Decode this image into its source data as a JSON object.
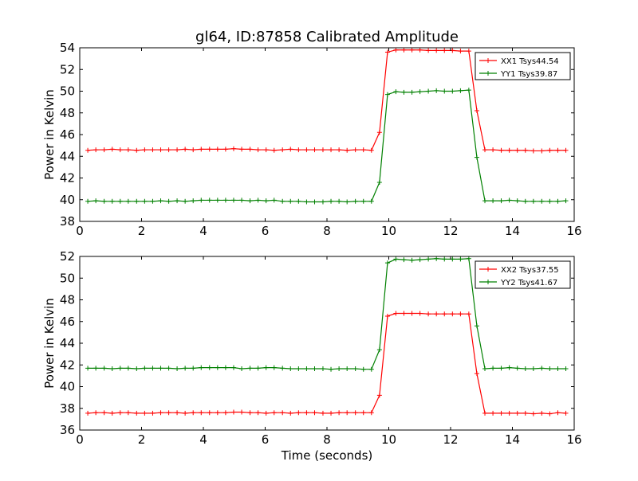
{
  "chart_data": [
    {
      "type": "line",
      "title": "gl64, ID:87858 Calibrated Amplitude",
      "xlabel": "",
      "ylabel": "Power in Kelvin",
      "xlim": [
        0,
        16
      ],
      "ylim": [
        38,
        54
      ],
      "xticks": [
        "0",
        "2",
        "4",
        "6",
        "8",
        "10",
        "12",
        "14",
        "16"
      ],
      "yticks": [
        "38",
        "40",
        "42",
        "44",
        "46",
        "48",
        "50",
        "52",
        "54"
      ],
      "legend_position": "top-right",
      "x": [
        0.26,
        0.52,
        0.79,
        1.05,
        1.31,
        1.57,
        1.84,
        2.1,
        2.36,
        2.62,
        2.88,
        3.15,
        3.41,
        3.67,
        3.93,
        4.2,
        4.46,
        4.72,
        4.98,
        5.24,
        5.51,
        5.77,
        6.03,
        6.29,
        6.56,
        6.82,
        7.08,
        7.34,
        7.6,
        7.87,
        8.13,
        8.39,
        8.65,
        8.92,
        9.18,
        9.44,
        9.7,
        9.96,
        10.23,
        10.49,
        10.75,
        11.01,
        11.28,
        11.54,
        11.8,
        12.06,
        12.32,
        12.59,
        12.85,
        13.11,
        13.37,
        13.64,
        13.9,
        14.16,
        14.42,
        14.68,
        14.95,
        15.21,
        15.47,
        15.73
      ],
      "series": [
        {
          "name": "XX1 Tsys44.54",
          "color": "#ff0000",
          "values": [
            44.55,
            44.6,
            44.6,
            44.65,
            44.6,
            44.6,
            44.55,
            44.6,
            44.6,
            44.6,
            44.6,
            44.6,
            44.65,
            44.6,
            44.65,
            44.65,
            44.65,
            44.65,
            44.7,
            44.65,
            44.65,
            44.6,
            44.6,
            44.55,
            44.6,
            44.65,
            44.6,
            44.6,
            44.6,
            44.6,
            44.6,
            44.6,
            44.55,
            44.6,
            44.6,
            44.55,
            46.2,
            53.6,
            53.8,
            53.8,
            53.8,
            53.8,
            53.75,
            53.75,
            53.75,
            53.75,
            53.7,
            53.7,
            48.2,
            44.6,
            44.6,
            44.55,
            44.55,
            44.55,
            44.55,
            44.5,
            44.5,
            44.55,
            44.55,
            44.55
          ]
        },
        {
          "name": "YY1 Tsys39.87",
          "color": "#008000",
          "values": [
            39.85,
            39.9,
            39.85,
            39.85,
            39.85,
            39.85,
            39.85,
            39.85,
            39.85,
            39.9,
            39.85,
            39.9,
            39.85,
            39.9,
            39.95,
            39.95,
            39.95,
            39.95,
            39.95,
            39.95,
            39.9,
            39.95,
            39.9,
            39.95,
            39.85,
            39.85,
            39.85,
            39.8,
            39.8,
            39.8,
            39.85,
            39.85,
            39.8,
            39.85,
            39.85,
            39.85,
            41.6,
            49.7,
            49.95,
            49.9,
            49.9,
            49.95,
            50.0,
            50.05,
            50.0,
            50.0,
            50.05,
            50.1,
            43.9,
            39.9,
            39.9,
            39.9,
            39.95,
            39.9,
            39.85,
            39.85,
            39.85,
            39.85,
            39.85,
            39.9
          ]
        }
      ]
    },
    {
      "type": "line",
      "title": "",
      "xlabel": "Time (seconds)",
      "ylabel": "Power in Kelvin",
      "xlim": [
        0,
        16
      ],
      "ylim": [
        36,
        52
      ],
      "xticks": [
        "0",
        "2",
        "4",
        "6",
        "8",
        "10",
        "12",
        "14",
        "16"
      ],
      "yticks": [
        "36",
        "38",
        "40",
        "42",
        "44",
        "46",
        "48",
        "50",
        "52"
      ],
      "legend_position": "top-right",
      "x": [
        0.26,
        0.52,
        0.79,
        1.05,
        1.31,
        1.57,
        1.84,
        2.1,
        2.36,
        2.62,
        2.88,
        3.15,
        3.41,
        3.67,
        3.93,
        4.2,
        4.46,
        4.72,
        4.98,
        5.24,
        5.51,
        5.77,
        6.03,
        6.29,
        6.56,
        6.82,
        7.08,
        7.34,
        7.6,
        7.87,
        8.13,
        8.39,
        8.65,
        8.92,
        9.18,
        9.44,
        9.7,
        9.96,
        10.23,
        10.49,
        10.75,
        11.01,
        11.28,
        11.54,
        11.8,
        12.06,
        12.32,
        12.59,
        12.85,
        13.11,
        13.37,
        13.64,
        13.9,
        14.16,
        14.42,
        14.68,
        14.95,
        15.21,
        15.47,
        15.73
      ],
      "series": [
        {
          "name": "XX2 Tsys37.55",
          "color": "#ff0000",
          "values": [
            37.55,
            37.6,
            37.6,
            37.55,
            37.6,
            37.6,
            37.55,
            37.55,
            37.55,
            37.6,
            37.6,
            37.6,
            37.55,
            37.6,
            37.6,
            37.6,
            37.6,
            37.6,
            37.65,
            37.65,
            37.6,
            37.6,
            37.55,
            37.6,
            37.6,
            37.55,
            37.6,
            37.6,
            37.6,
            37.55,
            37.55,
            37.6,
            37.6,
            37.6,
            37.6,
            37.6,
            39.2,
            46.5,
            46.75,
            46.75,
            46.75,
            46.75,
            46.7,
            46.7,
            46.7,
            46.7,
            46.7,
            46.7,
            41.2,
            37.55,
            37.55,
            37.55,
            37.55,
            37.55,
            37.55,
            37.5,
            37.55,
            37.5,
            37.6,
            37.55
          ]
        },
        {
          "name": "YY2 Tsys41.67",
          "color": "#008000",
          "values": [
            41.7,
            41.7,
            41.7,
            41.65,
            41.7,
            41.7,
            41.65,
            41.7,
            41.7,
            41.7,
            41.7,
            41.65,
            41.7,
            41.7,
            41.75,
            41.75,
            41.75,
            41.75,
            41.75,
            41.65,
            41.7,
            41.7,
            41.75,
            41.75,
            41.7,
            41.65,
            41.65,
            41.65,
            41.65,
            41.65,
            41.6,
            41.65,
            41.65,
            41.65,
            41.6,
            41.6,
            43.4,
            51.4,
            51.75,
            51.7,
            51.65,
            51.7,
            51.75,
            51.8,
            51.75,
            51.75,
            51.75,
            51.8,
            45.6,
            41.65,
            41.7,
            41.7,
            41.75,
            41.7,
            41.65,
            41.65,
            41.7,
            41.65,
            41.65,
            41.65
          ]
        }
      ]
    }
  ]
}
